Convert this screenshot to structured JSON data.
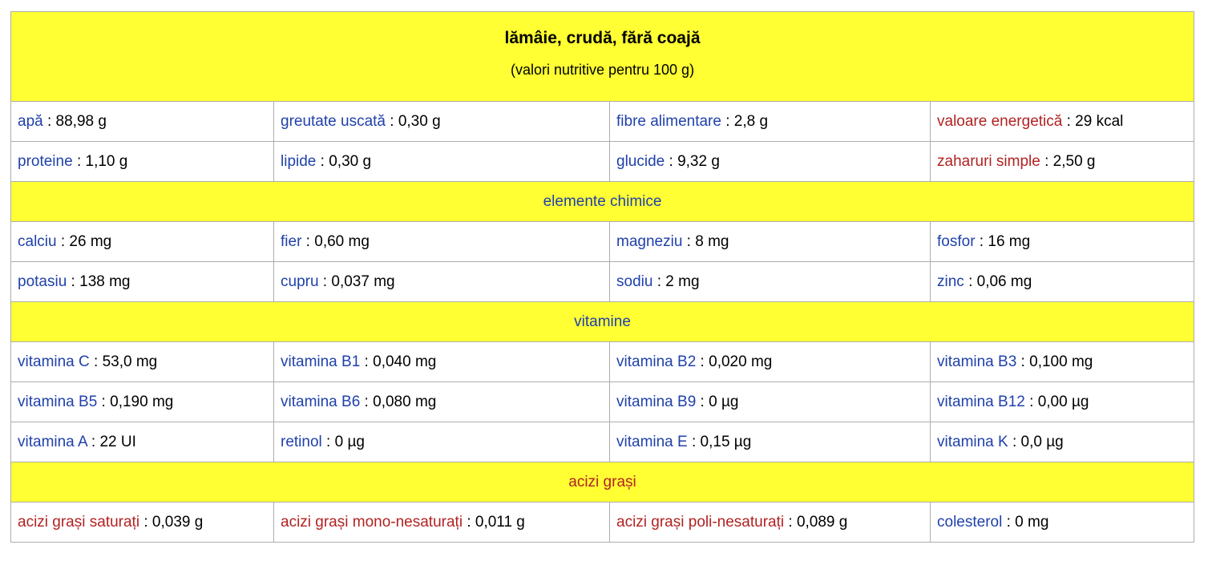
{
  "colors": {
    "page_bg": "#ffffff",
    "section_bg": "#ffff33",
    "link_blue": "#2041ab",
    "link_red": "#b22222",
    "border": "#adadad"
  },
  "table": {
    "title": "lămâie, crudă, fără coajă",
    "subtitle": "(valori nutritive pentru 100 g)",
    "separator": " : ",
    "sections": [
      {
        "rows": [
          {
            "cells": [
              {
                "label": "apă",
                "value": "88,98 g",
                "color": "blue"
              },
              {
                "label": "greutate uscată",
                "value": "0,30 g",
                "color": "blue"
              },
              {
                "label": "fibre alimentare",
                "value": "2,8 g",
                "color": "blue"
              },
              {
                "label": "valoare energetică",
                "value": "29 kcal",
                "color": "red"
              }
            ]
          },
          {
            "cells": [
              {
                "label": "proteine",
                "value": "1,10 g",
                "color": "blue"
              },
              {
                "label": "lipide",
                "value": "0,30 g",
                "color": "blue"
              },
              {
                "label": "glucide",
                "value": "9,32 g",
                "color": "blue"
              },
              {
                "label": "zaharuri simple",
                "value": "2,50 g",
                "color": "red"
              }
            ]
          }
        ]
      },
      {
        "header": {
          "label": "elemente chimice",
          "color": "blue"
        },
        "rows": [
          {
            "cells": [
              {
                "label": "calciu",
                "value": "26 mg",
                "color": "blue"
              },
              {
                "label": "fier",
                "value": "0,60 mg",
                "color": "blue"
              },
              {
                "label": "magneziu",
                "value": "8 mg",
                "color": "blue"
              },
              {
                "label": "fosfor",
                "value": "16 mg",
                "color": "blue"
              }
            ]
          },
          {
            "cells": [
              {
                "label": "potasiu",
                "value": "138 mg",
                "color": "blue"
              },
              {
                "label": "cupru",
                "value": "0,037 mg",
                "color": "blue"
              },
              {
                "label": "sodiu",
                "value": "2 mg",
                "color": "blue"
              },
              {
                "label": "zinc",
                "value": "0,06 mg",
                "color": "blue"
              }
            ]
          }
        ]
      },
      {
        "header": {
          "label": "vitamine",
          "color": "blue"
        },
        "rows": [
          {
            "cells": [
              {
                "label": "vitamina C",
                "value": "53,0 mg",
                "color": "blue"
              },
              {
                "label": "vitamina B1",
                "value": "0,040 mg",
                "color": "blue"
              },
              {
                "label": "vitamina B2",
                "value": "0,020 mg",
                "color": "blue"
              },
              {
                "label": "vitamina B3",
                "value": "0,100 mg",
                "color": "blue"
              }
            ]
          },
          {
            "cells": [
              {
                "label": "vitamina B5",
                "value": "0,190 mg",
                "color": "blue"
              },
              {
                "label": "vitamina B6",
                "value": "0,080 mg",
                "color": "blue"
              },
              {
                "label": "vitamina B9",
                "value": "0 µg",
                "color": "blue"
              },
              {
                "label": "vitamina B12",
                "value": "0,00 µg",
                "color": "blue"
              }
            ]
          },
          {
            "cells": [
              {
                "label": "vitamina A",
                "value": "22 UI",
                "color": "blue"
              },
              {
                "label": "retinol",
                "value": "0 µg",
                "color": "blue"
              },
              {
                "label": "vitamina E",
                "value": "0,15 µg",
                "color": "blue"
              },
              {
                "label": "vitamina K",
                "value": "0,0 µg",
                "color": "blue"
              }
            ]
          }
        ]
      },
      {
        "header": {
          "label": "acizi grași",
          "color": "red"
        },
        "rows": [
          {
            "cells": [
              {
                "label": "acizi grași saturați",
                "value": "0,039 g",
                "color": "red"
              },
              {
                "label": "acizi grași mono-nesaturați",
                "value": "0,011 g",
                "color": "red"
              },
              {
                "label": "acizi grași poli-nesaturați",
                "value": "0,089 g",
                "color": "red"
              },
              {
                "label": "colesterol",
                "value": "0 mg",
                "color": "blue"
              }
            ]
          }
        ]
      }
    ]
  }
}
